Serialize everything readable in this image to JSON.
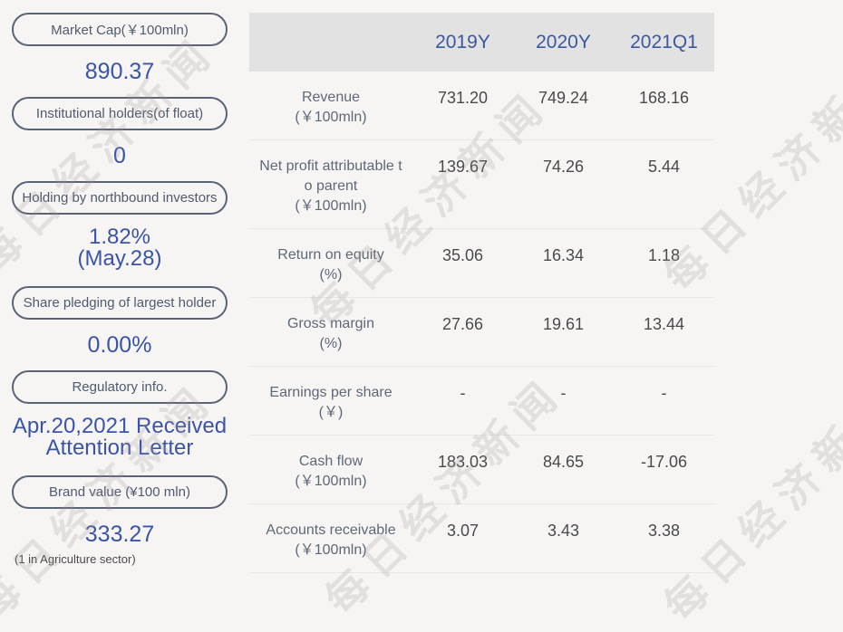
{
  "colors": {
    "page_background": "#f7f4f4",
    "header_background": "#e3e2e2",
    "header_text_blue": "#3b58a1",
    "value_blue": "#3a55a8",
    "pill_border": "#5b6477",
    "pill_text": "#4e5b70",
    "row_label": "#5d6979",
    "cell_value": "#4a4a4a",
    "watermark_gray": "#e3dfdf"
  },
  "watermark": {
    "text": "每日经济新闻"
  },
  "sidebar": {
    "items": [
      {
        "label": "Market Cap(￥100mln)",
        "value": "890.37"
      },
      {
        "label": "Institutional holders(of float)",
        "value": "0"
      },
      {
        "label": "Holding by northbound investors",
        "value": "1.82%",
        "value_line2": "(May.28)"
      },
      {
        "label": "Share pledging of largest holder",
        "value": "0.00%"
      },
      {
        "label": "Regulatory info.",
        "value": "Apr.20,2021 Received",
        "value_line2": "Attention Letter"
      },
      {
        "label": "Brand value (¥100 mln)",
        "value": "333.27",
        "note": "(1 in Agriculture sector)"
      }
    ]
  },
  "table": {
    "header": {
      "c1": "2019Y",
      "c2": "2020Y",
      "c3": "2021Q1"
    },
    "rows": [
      {
        "line1": "Revenue",
        "line2": "(￥100mln)",
        "v1": "731.20",
        "v2": "749.24",
        "v3": "168.16"
      },
      {
        "line1": "Net profit attributable t",
        "line2": "o parent",
        "line3": "(￥100mln)",
        "v1": "139.67",
        "v2": "74.26",
        "v3": "5.44"
      },
      {
        "line1": "Return on equity",
        "line2": "(%)",
        "v1": "35.06",
        "v2": "16.34",
        "v3": "1.18"
      },
      {
        "line1": "Gross margin",
        "line2": "(%)",
        "v1": "27.66",
        "v2": "19.61",
        "v3": "13.44"
      },
      {
        "line1": "Earnings per share",
        "line2": "(￥)",
        "v1": "-",
        "v2": "-",
        "v3": "-"
      },
      {
        "line1": "Cash flow",
        "line2": "(￥100mln)",
        "v1": "183.03",
        "v2": "84.65",
        "v3": "-17.06"
      },
      {
        "line1": "Accounts receivable",
        "line2": "(￥100mln)",
        "v1": "3.07",
        "v2": "3.43",
        "v3": "3.38"
      }
    ]
  }
}
